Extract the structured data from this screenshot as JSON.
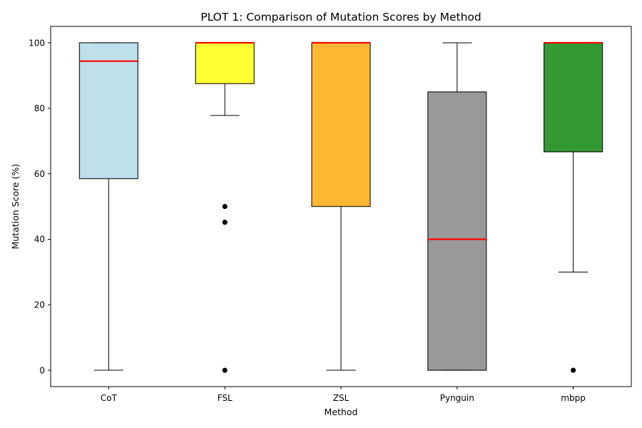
{
  "chart_data": {
    "type": "boxplot",
    "title": "PLOT 1: Comparison of Mutation Scores by Method",
    "xlabel": "Method",
    "ylabel": "Mutation Score (%)",
    "ylim": [
      -5,
      105
    ],
    "yticks": [
      0,
      20,
      40,
      60,
      80,
      100
    ],
    "grid": false,
    "categories": [
      "CoT",
      "FSL",
      "ZSL",
      "Pynguin",
      "mbpp"
    ],
    "boxes": [
      {
        "category": "CoT",
        "whisker_low": 0,
        "q1": 58.5,
        "median": 94.4,
        "q3": 100,
        "whisker_high": 100,
        "fliers": [],
        "color": "#add8e6"
      },
      {
        "category": "FSL",
        "whisker_low": 77.8,
        "q1": 87.5,
        "median": 100,
        "q3": 100,
        "whisker_high": 100,
        "fliers": [
          50,
          45.2,
          0
        ],
        "color": "#ffff00"
      },
      {
        "category": "ZSL",
        "whisker_low": 0,
        "q1": 50,
        "median": 100,
        "q3": 100,
        "whisker_high": 100,
        "fliers": [],
        "color": "#ffa500"
      },
      {
        "category": "Pynguin",
        "whisker_low": 0,
        "q1": 0,
        "median": 40,
        "q3": 85,
        "whisker_high": 100,
        "fliers": [],
        "color": "#808080"
      },
      {
        "category": "mbpp",
        "whisker_low": 30,
        "q1": 66.7,
        "median": 100,
        "q3": 100,
        "whisker_high": 100,
        "fliers": [
          0
        ],
        "color": "#008000"
      }
    ],
    "median_color": "#ff0000"
  }
}
